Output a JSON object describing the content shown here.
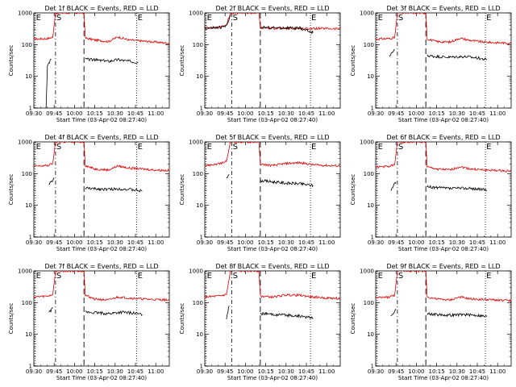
{
  "chart_data": {
    "type": "line",
    "layout": "3x3 grid",
    "shared": {
      "xlabel": "Start Time (03-Apr-02 08:27:40)",
      "ylabel": "Counts/sec",
      "yscale": "log",
      "ylim": [
        1,
        1000
      ],
      "yticks": [
        "1",
        "10",
        "100",
        "1000"
      ],
      "xlim": [
        "09:30",
        "11:10"
      ],
      "xticks": [
        "09:30",
        "09:45",
        "10:00",
        "10:15",
        "10:30",
        "10:45",
        "11:00"
      ],
      "event_marker_labels": [
        "E",
        "S",
        "E"
      ],
      "line_styles": {
        "S_markers": "dashed",
        "E_markers": "dotted"
      },
      "colors": {
        "events": "#000000",
        "lld": "#e00000"
      }
    },
    "panels": [
      {
        "title": "Det 1f BLACK = Events, RED = LLD",
        "markers": {
          "e1": "09:31",
          "d1": "09:46",
          "d2": "10:07",
          "e2": "10:46"
        },
        "lld": {
          "x": [
            "09:30",
            "09:40",
            "09:44",
            "09:46",
            "10:07",
            "10:08",
            "10:15",
            "10:25",
            "10:32",
            "10:40",
            "10:50",
            "11:00",
            "11:10"
          ],
          "y": [
            150,
            155,
            170,
            1000,
            1000,
            160,
            140,
            125,
            175,
            140,
            130,
            120,
            110
          ]
        },
        "events": [
          {
            "x": [
              "09:39",
              "09:40",
              "09:42",
              "09:43"
            ],
            "y": [
              1,
              20,
              30,
              35
            ]
          },
          {
            "x": [
              "10:08",
              "10:15",
              "10:25",
              "10:32",
              "10:40",
              "10:47"
            ],
            "y": [
              35,
              33,
              30,
              34,
              30,
              28
            ]
          }
        ]
      },
      {
        "title": "Det 2f BLACK = Events, RED = LLD",
        "markers": {
          "e1": "09:31",
          "d1": "09:50",
          "d2": "10:11",
          "e2": "10:48"
        },
        "lld": {
          "x": [
            "09:30",
            "09:40",
            "09:46",
            "09:49",
            "10:10",
            "10:11",
            "10:20",
            "10:35",
            "10:50",
            "11:00",
            "11:10"
          ],
          "y": [
            340,
            350,
            420,
            1000,
            1000,
            340,
            330,
            320,
            320,
            320,
            315
          ]
        },
        "events": [
          {
            "x": [
              "09:30",
              "09:40",
              "09:46",
              "09:49"
            ],
            "y": [
              330,
              340,
              380,
              900
            ]
          },
          {
            "x": [
              "10:11",
              "10:20",
              "10:30",
              "10:40",
              "10:50"
            ],
            "y": [
              350,
              340,
              335,
              330,
              240
            ]
          }
        ]
      },
      {
        "title": "Det 3f BLACK = Events, RED = LLD",
        "markers": {
          "e1": "09:31",
          "d1": "09:46",
          "d2": "10:07",
          "e2": "10:51"
        },
        "lld": {
          "x": [
            "09:30",
            "09:40",
            "09:44",
            "09:46",
            "10:07",
            "10:08",
            "10:15",
            "10:25",
            "10:32",
            "10:40",
            "10:50",
            "11:00",
            "11:10"
          ],
          "y": [
            150,
            155,
            165,
            1000,
            1000,
            150,
            125,
            120,
            160,
            135,
            120,
            115,
            110
          ]
        },
        "events": [
          {
            "x": [
              "09:40",
              "09:42",
              "09:44"
            ],
            "y": [
              40,
              55,
              70
            ]
          },
          {
            "x": [
              "10:08",
              "10:15",
              "10:25",
              "10:35",
              "10:45",
              "10:52"
            ],
            "y": [
              45,
              42,
              40,
              42,
              38,
              33
            ]
          }
        ]
      },
      {
        "title": "Det 4f BLACK = Events, RED = LLD",
        "markers": {
          "e1": "09:31",
          "d1": "09:46",
          "d2": "10:07",
          "e2": "10:46"
        },
        "lld": {
          "x": [
            "09:30",
            "09:40",
            "09:44",
            "09:46",
            "10:07",
            "10:08",
            "10:15",
            "10:25",
            "10:32",
            "10:40",
            "10:50",
            "11:00",
            "11:10"
          ],
          "y": [
            170,
            180,
            210,
            1000,
            1000,
            180,
            140,
            130,
            175,
            150,
            140,
            130,
            125
          ]
        },
        "events": [
          {
            "x": [
              "09:41",
              "09:43",
              "09:45"
            ],
            "y": [
              45,
              55,
              70
            ]
          },
          {
            "x": [
              "10:08",
              "10:15",
              "10:25",
              "10:35",
              "10:45",
              "10:50"
            ],
            "y": [
              35,
              33,
              32,
              33,
              30,
              28
            ]
          }
        ]
      },
      {
        "title": "Det 5f BLACK = Events, RED = LLD",
        "markers": {
          "e1": "09:31",
          "d1": "09:50",
          "d2": "10:11",
          "e2": "10:48"
        },
        "lld": {
          "x": [
            "09:30",
            "09:40",
            "09:46",
            "09:49",
            "10:10",
            "10:11",
            "10:20",
            "10:30",
            "10:40",
            "10:50",
            "11:00",
            "11:10"
          ],
          "y": [
            180,
            200,
            240,
            1000,
            1000,
            200,
            180,
            210,
            220,
            190,
            180,
            175
          ]
        },
        "events": [
          {
            "x": [
              "09:46",
              "09:47",
              "09:48"
            ],
            "y": [
              70,
              85,
              95
            ]
          },
          {
            "x": [
              "10:11",
              "10:20",
              "10:30",
              "10:40",
              "10:50"
            ],
            "y": [
              60,
              55,
              50,
              48,
              42
            ]
          }
        ]
      },
      {
        "title": "Det 6f BLACK = Events, RED = LLD",
        "markers": {
          "e1": "09:31",
          "d1": "09:46",
          "d2": "10:07",
          "e2": "10:51"
        },
        "lld": {
          "x": [
            "09:30",
            "09:40",
            "09:44",
            "09:46",
            "10:07",
            "10:08",
            "10:15",
            "10:25",
            "10:32",
            "10:40",
            "10:50",
            "11:00",
            "11:10"
          ],
          "y": [
            160,
            170,
            190,
            1000,
            1000,
            160,
            140,
            130,
            165,
            140,
            130,
            125,
            120
          ]
        },
        "events": [
          {
            "x": [
              "09:41",
              "09:43",
              "09:45"
            ],
            "y": [
              30,
              40,
              55
            ]
          },
          {
            "x": [
              "10:08",
              "10:15",
              "10:25",
              "10:35",
              "10:45",
              "10:52"
            ],
            "y": [
              38,
              36,
              34,
              35,
              33,
              30
            ]
          }
        ]
      },
      {
        "title": "Det 7f BLACK = Events, RED = LLD",
        "markers": {
          "e1": "09:31",
          "d1": "09:46",
          "d2": "10:07",
          "e2": "10:46"
        },
        "lld": {
          "x": [
            "09:30",
            "09:40",
            "09:44",
            "09:46",
            "10:07",
            "10:08",
            "10:15",
            "10:25",
            "10:32",
            "10:40",
            "10:50",
            "11:00",
            "11:10"
          ],
          "y": [
            150,
            160,
            180,
            1000,
            1000,
            170,
            130,
            120,
            150,
            140,
            130,
            125,
            120
          ]
        },
        "events": [
          {
            "x": [
              "09:41",
              "09:43",
              "09:44"
            ],
            "y": [
              45,
              60,
              70
            ]
          },
          {
            "x": [
              "10:08",
              "10:15",
              "10:25",
              "10:35",
              "10:45",
              "10:50"
            ],
            "y": [
              50,
              48,
              45,
              50,
              46,
              42
            ]
          }
        ]
      },
      {
        "title": "Det 8f BLACK = Events, RED = LLD",
        "markers": {
          "e1": "09:31",
          "d1": "09:50",
          "d2": "10:11",
          "e2": "10:48"
        },
        "lld": {
          "x": [
            "09:30",
            "09:40",
            "09:46",
            "09:49",
            "10:10",
            "10:11",
            "10:20",
            "10:30",
            "10:40",
            "10:50",
            "11:00",
            "11:10"
          ],
          "y": [
            150,
            160,
            180,
            1000,
            1000,
            160,
            150,
            175,
            170,
            150,
            140,
            135
          ]
        },
        "events": [
          {
            "x": [
              "09:46",
              "09:47",
              "09:48"
            ],
            "y": [
              30,
              50,
              80
            ]
          },
          {
            "x": [
              "10:11",
              "10:20",
              "10:30",
              "10:40",
              "10:50"
            ],
            "y": [
              45,
              42,
              40,
              38,
              32
            ]
          }
        ]
      },
      {
        "title": "Det 9f BLACK = Events, RED = LLD",
        "markers": {
          "e1": "09:31",
          "d1": "09:46",
          "d2": "10:07",
          "e2": "10:51"
        },
        "lld": {
          "x": [
            "09:30",
            "09:40",
            "09:44",
            "09:46",
            "10:07",
            "10:08",
            "10:15",
            "10:25",
            "10:32",
            "10:40",
            "10:50",
            "11:00",
            "11:10"
          ],
          "y": [
            140,
            150,
            170,
            1000,
            1000,
            150,
            130,
            120,
            150,
            130,
            125,
            120,
            115
          ]
        },
        "events": [
          {
            "x": [
              "09:41",
              "09:43",
              "09:45"
            ],
            "y": [
              35,
              45,
              60
            ]
          },
          {
            "x": [
              "10:08",
              "10:15",
              "10:25",
              "10:35",
              "10:45",
              "10:52"
            ],
            "y": [
              45,
              42,
              40,
              42,
              40,
              36
            ]
          }
        ]
      }
    ]
  }
}
